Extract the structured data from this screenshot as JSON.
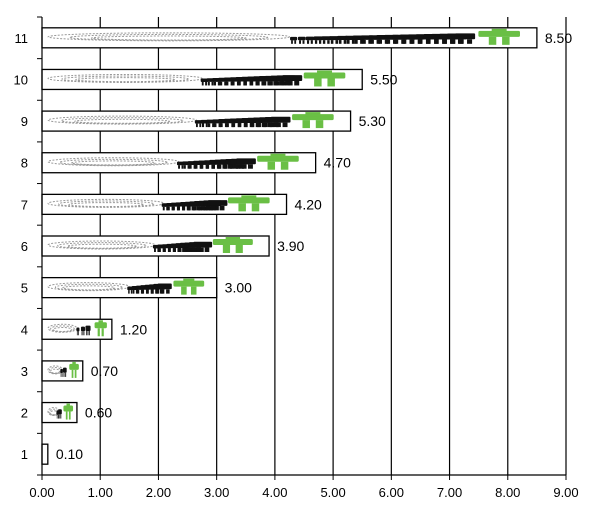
{
  "chart_data": {
    "type": "bar",
    "orientation": "horizontal",
    "title": "",
    "xlabel": "",
    "ylabel": "",
    "categories": [
      "1",
      "2",
      "3",
      "4",
      "5",
      "6",
      "7",
      "8",
      "9",
      "10",
      "11"
    ],
    "values": [
      0.1,
      0.6,
      0.7,
      1.2,
      3.0,
      3.9,
      4.2,
      4.7,
      5.3,
      5.5,
      8.5
    ],
    "value_labels": [
      "0.10",
      "0.60",
      "0.70",
      "1.20",
      "3.00",
      "3.90",
      "4.20",
      "4.70",
      "5.30",
      "5.50",
      "8.50"
    ],
    "xlim": [
      0,
      9
    ],
    "x_ticks": [
      "0.00",
      "1.00",
      "2.00",
      "3.00",
      "4.00",
      "5.00",
      "6.00",
      "7.00",
      "8.00",
      "9.00"
    ],
    "grid": "vertical",
    "legend": "none",
    "bar_fill": "#ffffff",
    "bar_stroke": "#000000",
    "highlight_color": "#6abf45",
    "figure_color": "#111111",
    "crowd_color": "#999999",
    "icon": "crowd-of-people-icon"
  }
}
